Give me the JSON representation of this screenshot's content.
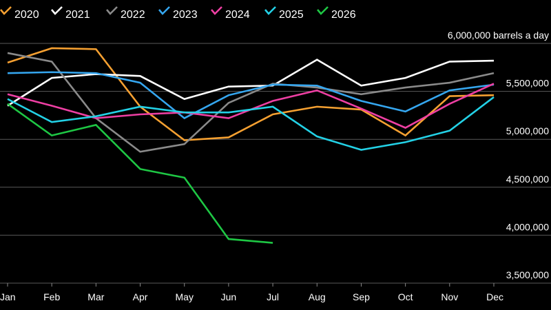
{
  "chart_data": {
    "type": "line",
    "title": "",
    "xlabel": "",
    "ylabel": "",
    "unit_label": "barrels a day",
    "categories": [
      "Jan",
      "Feb",
      "Mar",
      "Apr",
      "May",
      "Jun",
      "Jul",
      "Aug",
      "Sep",
      "Oct",
      "Nov",
      "Dec"
    ],
    "ylim": [
      3500000,
      6000000
    ],
    "y_ticks": [
      {
        "value": 6000000,
        "label": "6,000,000"
      },
      {
        "value": 5500000,
        "label": "5,500,000"
      },
      {
        "value": 5000000,
        "label": "5,000,000"
      },
      {
        "value": 4500000,
        "label": "4,500,000"
      },
      {
        "value": 4000000,
        "label": "4,000,000"
      },
      {
        "value": 3500000,
        "label": "3,500,000"
      }
    ],
    "grid": true,
    "legend_position": "top-left",
    "series": [
      {
        "name": "2020",
        "color": "#f5a031",
        "values": [
          5800000,
          5950000,
          5940000,
          5340000,
          4990000,
          5020000,
          5260000,
          5340000,
          5310000,
          5040000,
          5450000,
          5460000
        ]
      },
      {
        "name": "2021",
        "color": "#ffffff",
        "values": [
          5350000,
          5640000,
          5680000,
          5660000,
          5420000,
          5550000,
          5560000,
          5830000,
          5560000,
          5640000,
          5810000,
          5820000
        ]
      },
      {
        "name": "2022",
        "color": "#8a8a8a",
        "values": [
          5900000,
          5810000,
          5220000,
          4870000,
          4950000,
          5380000,
          5580000,
          5540000,
          5470000,
          5540000,
          5590000,
          5690000
        ]
      },
      {
        "name": "2023",
        "color": "#35a6ef",
        "values": [
          5690000,
          5700000,
          5690000,
          5590000,
          5220000,
          5460000,
          5570000,
          5560000,
          5400000,
          5290000,
          5510000,
          5570000
        ]
      },
      {
        "name": "2024",
        "color": "#ee3fa3",
        "values": [
          5470000,
          5350000,
          5220000,
          5260000,
          5280000,
          5220000,
          5400000,
          5510000,
          5320000,
          5120000,
          5370000,
          5580000
        ]
      },
      {
        "name": "2025",
        "color": "#23d1e6",
        "values": [
          5420000,
          5180000,
          5240000,
          5340000,
          5280000,
          5280000,
          5340000,
          5030000,
          4890000,
          4970000,
          5090000,
          5440000
        ]
      },
      {
        "name": "2026",
        "color": "#1ec744",
        "values": [
          5370000,
          5040000,
          5150000,
          4690000,
          4600000,
          3960000,
          3920000,
          null,
          null,
          null,
          null,
          null
        ]
      }
    ]
  }
}
